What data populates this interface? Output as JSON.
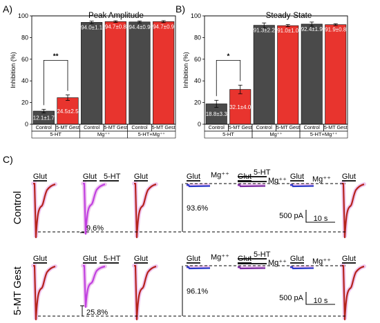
{
  "colors": {
    "control_bar": "#4a4a4a",
    "test_bar": "#e8342e",
    "trace_control": "#b5231c",
    "trace_5ht": "#c040e0",
    "trace_mg": "#2a38c8",
    "trace_glow": "#f0c8f0",
    "trace_mix": "#7a2aa0"
  },
  "chart_data": [
    {
      "type": "bar",
      "panel": "A)",
      "title": "Peak Amplitude",
      "ylabel": "Inhibition (%)",
      "ylim": [
        0,
        100
      ],
      "yticks": [
        0,
        20,
        40,
        60,
        80,
        100
      ],
      "categories": [
        "Control",
        "5-MT Gest",
        "Control",
        "5-MT Gest",
        "Control",
        "5-MT Gest"
      ],
      "groups": [
        "5-HT",
        "Mg⁺⁺",
        "5-HT+Mg⁺⁺"
      ],
      "values": [
        12.1,
        24.5,
        94.0,
        94.7,
        94.4,
        94.7
      ],
      "errors": [
        1.7,
        2.5,
        1.1,
        0.8,
        0.9,
        0.9
      ],
      "labels": [
        "12.1±1.7",
        "24.5±2.5",
        "94.0±1.1",
        "94.7±0.8",
        "94.4±0.9",
        "94.7±0.9"
      ],
      "significance": "**"
    },
    {
      "type": "bar",
      "panel": "B)",
      "title": "Steady-State",
      "ylabel": "Inhibition (%)",
      "ylim": [
        0,
        100
      ],
      "yticks": [
        0,
        20,
        40,
        60,
        80,
        100
      ],
      "categories": [
        "Control",
        "5-MT Gest",
        "Control",
        "5-MT Gest",
        "Control",
        "5-MT Gest"
      ],
      "groups": [
        "5-HT",
        "Mg⁺⁺",
        "5-HT+Mg⁺⁺"
      ],
      "values": [
        18.8,
        32.1,
        91.3,
        91.0,
        92.4,
        91.9
      ],
      "errors": [
        3.3,
        4.0,
        2.2,
        1.0,
        1.9,
        0.8
      ],
      "labels": [
        "18.8±3.3",
        "32.1±4.0",
        "91.3±2.2",
        "91.0±1.0",
        "92.4±1.9",
        "91.9±0.8"
      ],
      "significance": "*"
    }
  ],
  "traces": {
    "panel": "C)",
    "rows": [
      {
        "label": "Control",
        "pct_5ht": "9.6%",
        "pct_mg": "93.6%"
      },
      {
        "label": "5-MT Gest",
        "pct_5ht": "25.8%",
        "pct_mg": "96.1%"
      }
    ],
    "glut": "Glut",
    "ht": "5-HT",
    "mg": "Mg⁺⁺",
    "scale_current": "500 pA",
    "scale_time": "10 s"
  }
}
